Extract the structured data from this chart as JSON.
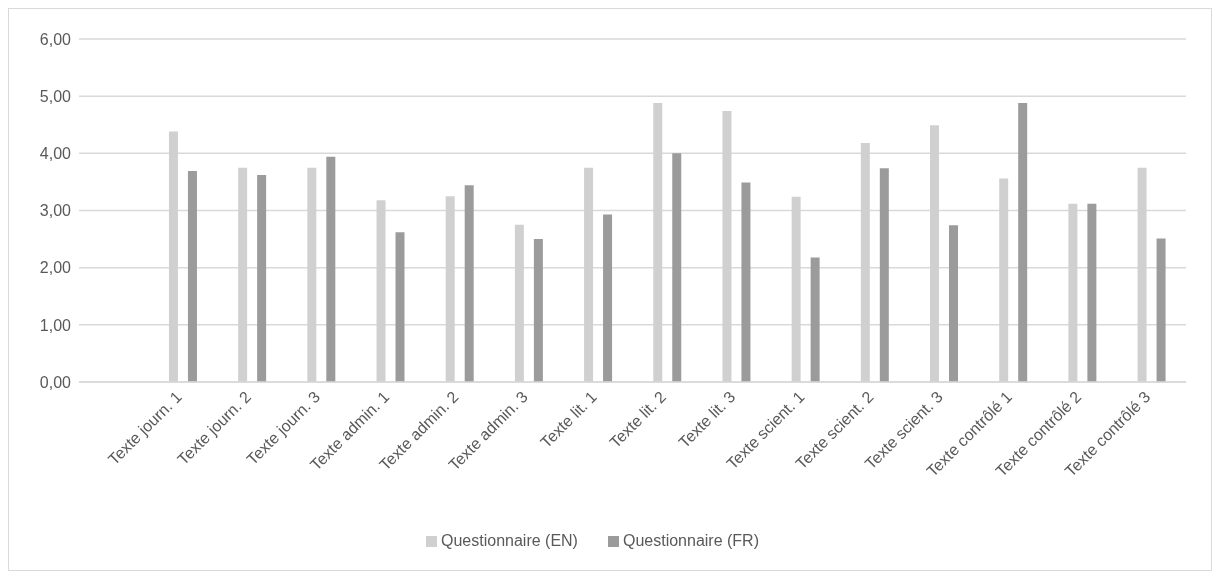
{
  "chart_data": {
    "type": "bar",
    "categories": [
      null,
      "Texte journ. 1",
      "Texte journ. 2",
      "Texte journ. 3",
      "Texte admin. 1",
      "Texte admin. 2",
      "Texte admin. 3",
      "Texte lit. 1",
      "Texte lit. 2",
      "Texte lit. 3",
      "Texte scient. 1",
      "Texte scient. 2",
      "Texte scient. 3",
      "Texte contrôlé 1",
      "Texte contrôlé 2",
      "Texte contrôlé 3"
    ],
    "series": [
      {
        "name": "Questionnaire (EN)",
        "color": "#d0d0d0",
        "values": [
          null,
          4.38,
          3.75,
          3.75,
          3.18,
          3.25,
          2.75,
          3.75,
          4.88,
          4.74,
          3.24,
          4.18,
          4.49,
          3.56,
          3.12,
          3.75
        ]
      },
      {
        "name": "Questionnaire (FR)",
        "color": "#9b9b9b",
        "values": [
          null,
          3.69,
          3.62,
          3.94,
          2.62,
          3.44,
          2.5,
          2.93,
          4.0,
          3.49,
          2.18,
          3.74,
          2.74,
          4.88,
          3.12,
          2.51
        ]
      }
    ],
    "ylim": [
      0,
      6
    ],
    "yticks": [
      {
        "value": 0,
        "label": "0,00"
      },
      {
        "value": 1,
        "label": "1,00"
      },
      {
        "value": 2,
        "label": "2,00"
      },
      {
        "value": 3,
        "label": "3,00"
      },
      {
        "value": 4,
        "label": "4,00"
      },
      {
        "value": 5,
        "label": "5,00"
      },
      {
        "value": 6,
        "label": "6,00"
      }
    ],
    "grid": "y",
    "legend": "bottom"
  }
}
